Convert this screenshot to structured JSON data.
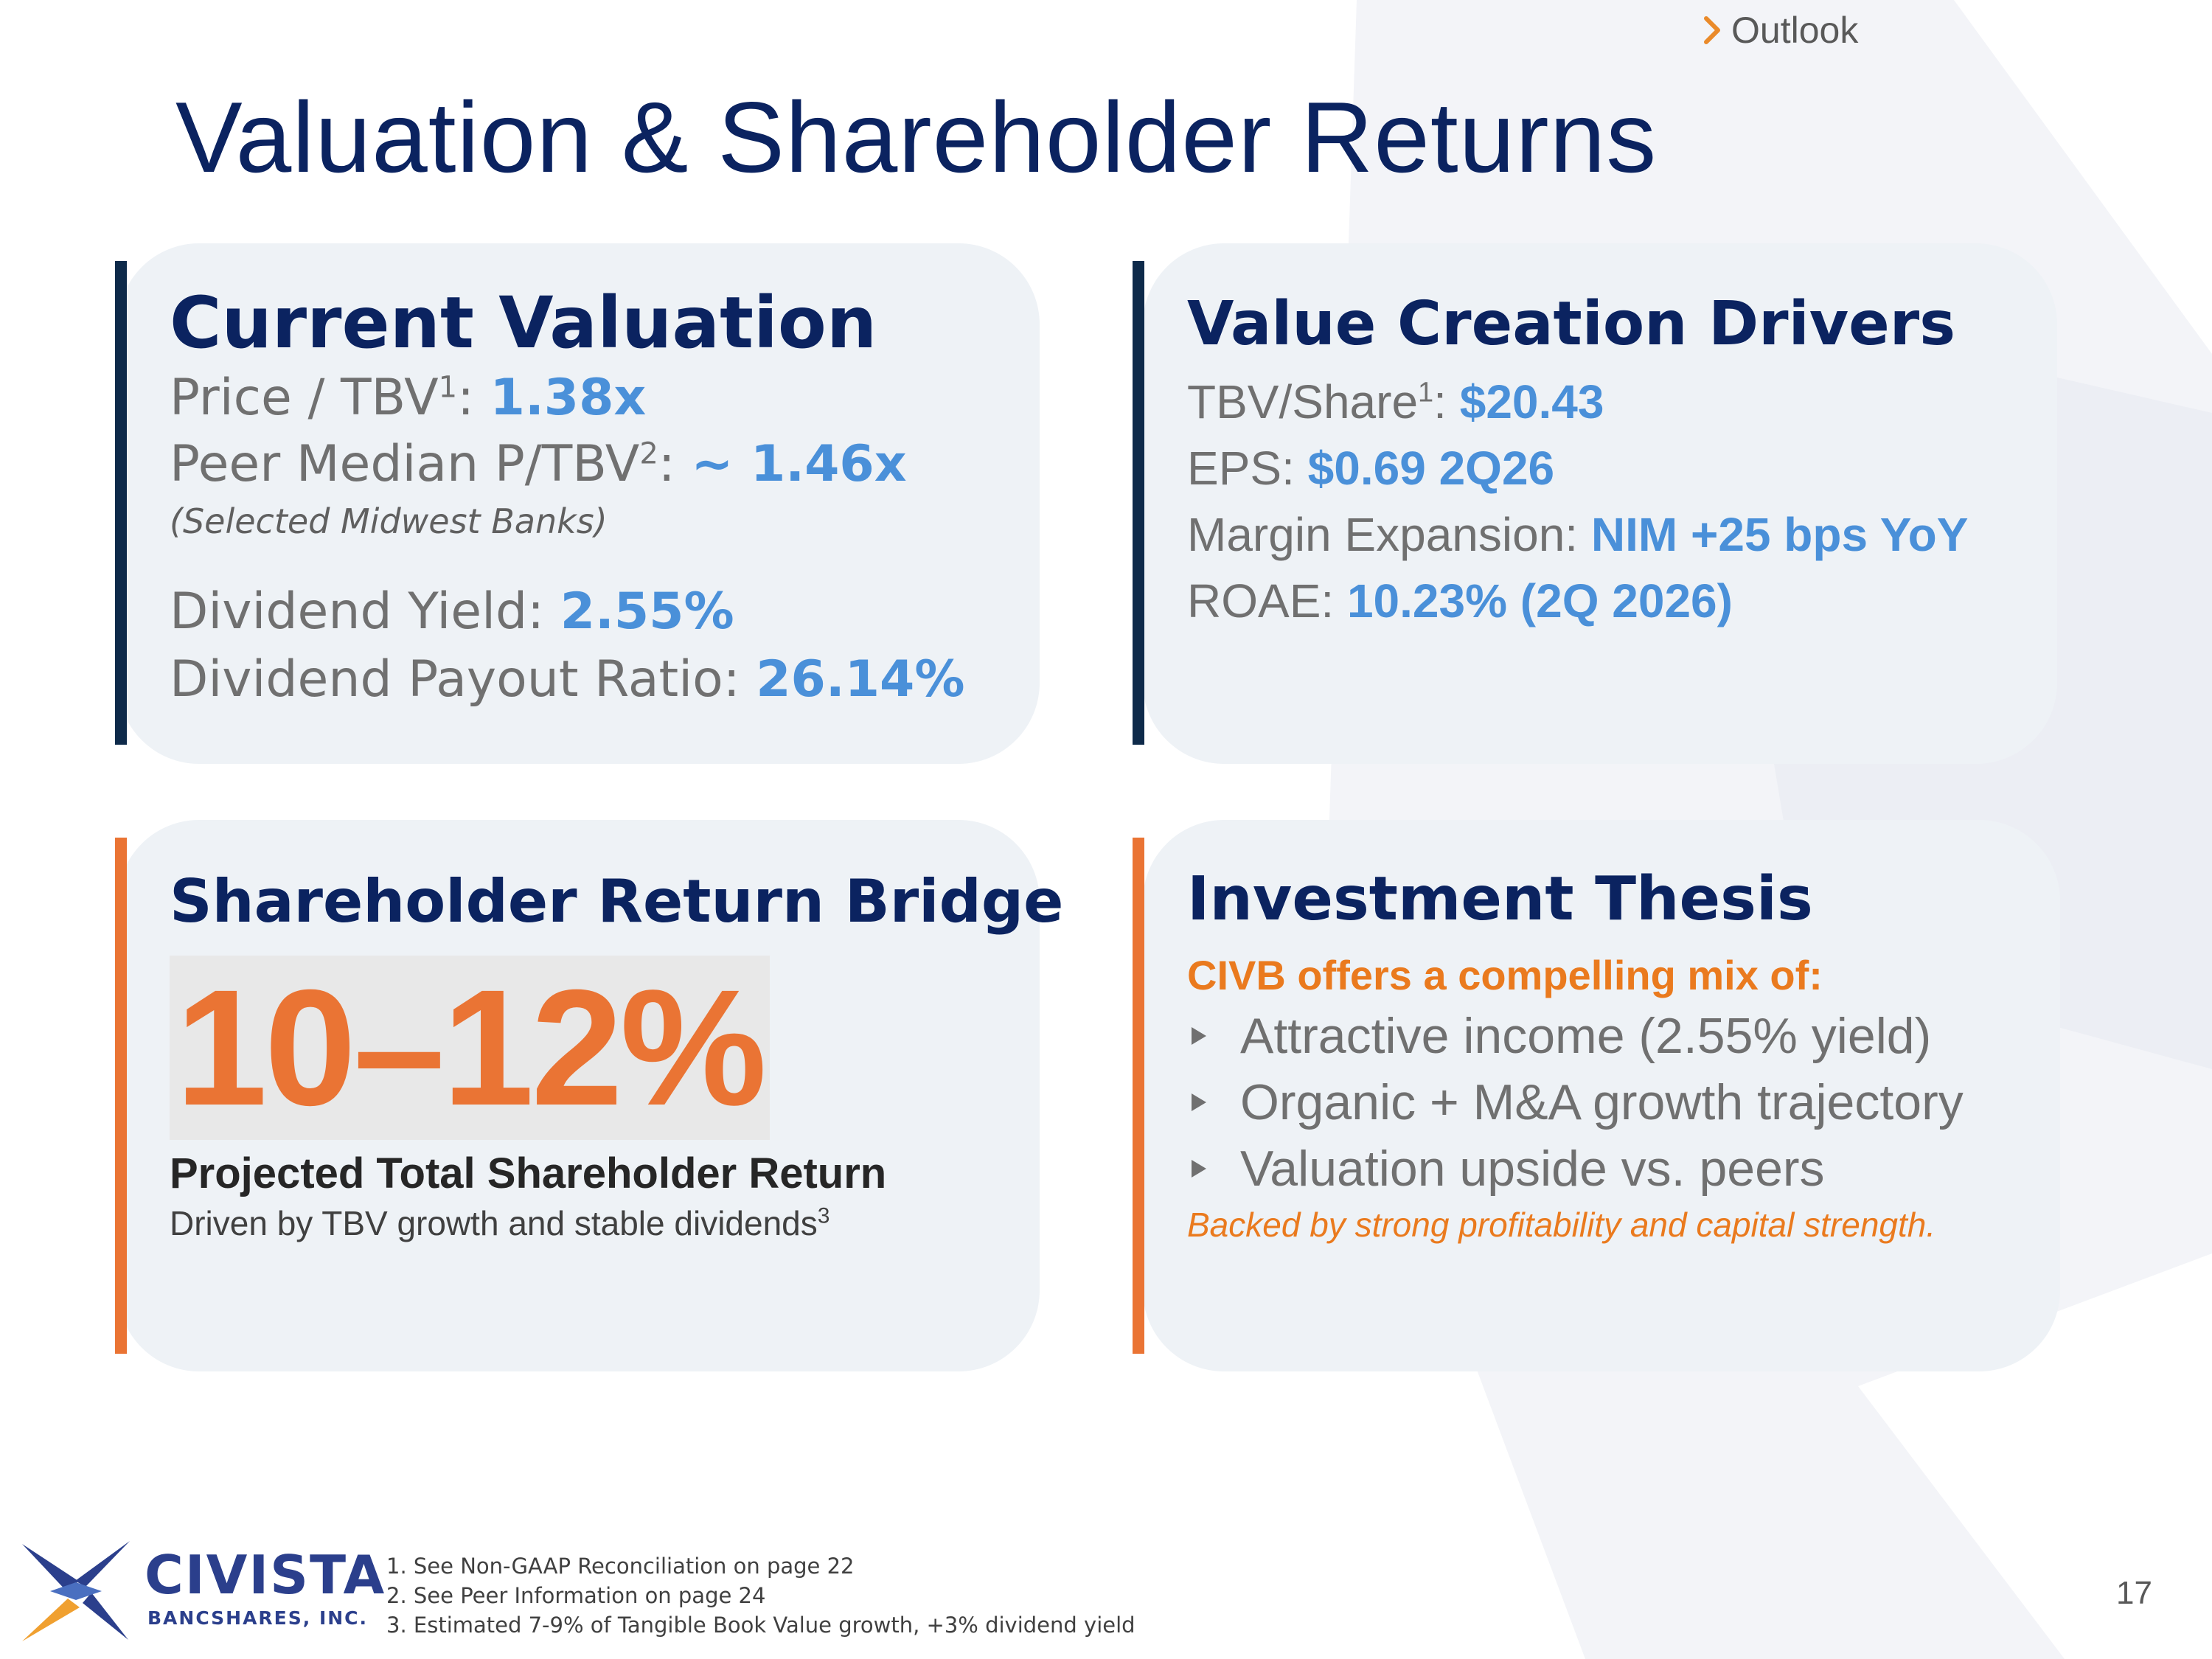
{
  "header": {
    "section_tag": "Outlook",
    "title": "Valuation & Shareholder Returns"
  },
  "current_valuation": {
    "title": "Current Valuation",
    "price_tbv_label": "Price / TBV",
    "price_tbv_sup": "1",
    "price_tbv_colon": ":",
    "price_tbv_value": "1.38x",
    "peer_label": "Peer Median P/TBV",
    "peer_sup": "2",
    "peer_colon": ":",
    "peer_value": "~ 1.46x",
    "peer_note": "(Selected Midwest Banks)",
    "yield_label": "Dividend Yield:",
    "yield_value": "2.55%",
    "payout_label": "Dividend Payout Ratio:",
    "payout_value": "26.14%"
  },
  "value_drivers": {
    "title": "Value Creation Drivers",
    "tbv_label": "TBV/Share",
    "tbv_sup": "1",
    "tbv_colon": ":",
    "tbv_value": "$20.43",
    "eps_label": "EPS:",
    "eps_value": "$0.69 2Q26",
    "margin_label": "Margin Expansion:",
    "margin_value": "NIM +25 bps YoY",
    "roae_label": "ROAE:",
    "roae_value": "10.23% (2Q 2026)"
  },
  "return_bridge": {
    "title": "Shareholder Return Bridge",
    "big_value": "10–12%",
    "label": "Projected Total Shareholder Return",
    "sub": "Driven by TBV growth and stable dividends",
    "sub_sup": "3"
  },
  "investment_thesis": {
    "title": "Investment Thesis",
    "intro": "CIVB offers a compelling mix of:",
    "bullets": [
      "Attractive income (2.55% yield)",
      "Organic + M&A growth trajectory",
      "Valuation upside vs. peers"
    ],
    "closing": "Backed by strong profitability and capital strength."
  },
  "footer": {
    "logo_name": "CIVISTA",
    "logo_sub": "BANCSHARES, INC.",
    "footnotes": [
      "1. See Non-GAAP Reconciliation on page 22",
      "2. See Peer Information on page 24",
      "3. Estimated 7-9% of Tangible Book Value growth, +3% dividend yield"
    ],
    "page_number": "17"
  },
  "colors": {
    "navy": "#0b2360",
    "accent_blue": "#4a90d9",
    "accent_orange": "#ea7434",
    "card_bg": "#eef2f6"
  },
  "icons": {
    "section_marker": "chevron-right-icon",
    "bullet_marker": "triangle-right-icon"
  }
}
